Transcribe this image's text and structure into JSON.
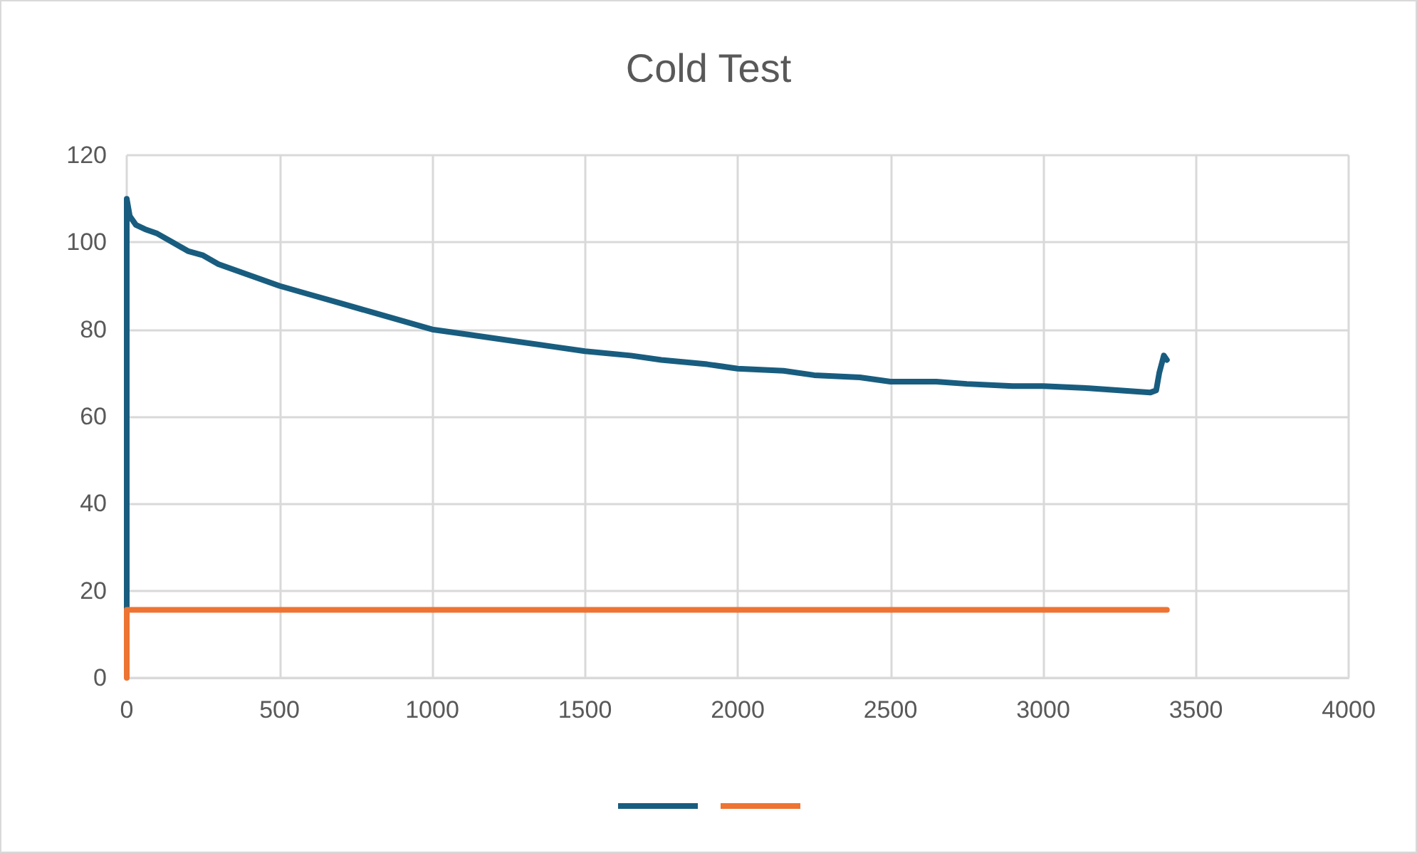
{
  "chart_data": {
    "type": "line",
    "title": "Cold Test",
    "series": [
      {
        "color": "#185d7f",
        "x": [
          0,
          0,
          10,
          30,
          60,
          100,
          150,
          200,
          250,
          300,
          400,
          500,
          600,
          700,
          800,
          900,
          1000,
          1100,
          1250,
          1400,
          1500,
          1650,
          1750,
          1900,
          2000,
          2150,
          2250,
          2400,
          2500,
          2650,
          2750,
          2900,
          3000,
          3150,
          3250,
          3350,
          3370,
          3380,
          3395,
          3405
        ],
        "values": [
          16,
          110,
          106,
          104,
          103,
          102,
          100,
          98,
          97,
          95,
          92.5,
          90,
          88,
          86,
          84,
          82,
          80,
          79,
          77.5,
          76,
          75,
          74,
          73,
          72,
          71,
          70.5,
          69.5,
          69,
          68,
          68,
          67.5,
          67,
          67,
          66.5,
          66,
          65.5,
          66,
          70,
          74,
          73
        ]
      },
      {
        "color": "#ed7432",
        "x": [
          0,
          0,
          3405
        ],
        "values": [
          0,
          15.6,
          15.6
        ]
      }
    ],
    "xlim": [
      0,
      4000
    ],
    "xticks": [
      0,
      500,
      1000,
      1500,
      2000,
      2500,
      3000,
      3500,
      4000
    ],
    "ylim": [
      0,
      120
    ],
    "yticks": [
      0,
      20,
      40,
      60,
      80,
      100,
      120
    ],
    "grid": true,
    "marker": "none",
    "line_style": "solid"
  }
}
